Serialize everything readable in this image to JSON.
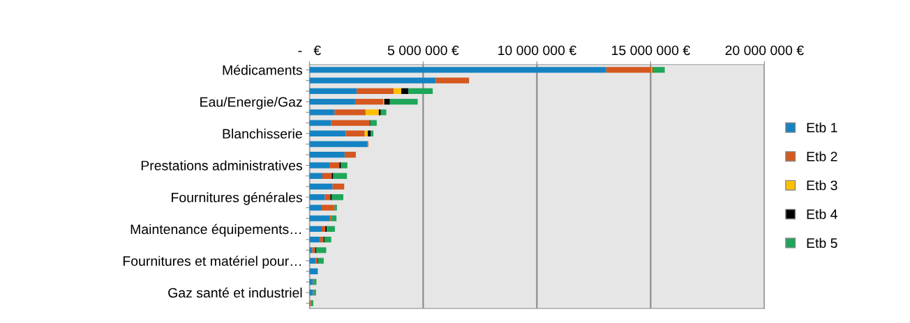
{
  "chart_data": {
    "type": "bar",
    "orientation": "horizontal",
    "stacked": true,
    "categories": [
      "Médicaments",
      null,
      null,
      "Eau/Energie/Gaz",
      null,
      null,
      "Blanchisserie",
      null,
      null,
      "Prestations administratives",
      null,
      null,
      "Fournitures générales",
      null,
      null,
      "Maintenance équipements…",
      null,
      null,
      "Fournitures et matériel pour…",
      null,
      null,
      "Gaz santé et industriel",
      null
    ],
    "series": [
      {
        "name": "Etb 1",
        "color": "#1583c2",
        "values": [
          13050000,
          5560000,
          2080000,
          2010000,
          1110000,
          960000,
          1600000,
          2540000,
          1550000,
          880000,
          570000,
          1020000,
          680000,
          540000,
          880000,
          540000,
          470000,
          130000,
          270000,
          370000,
          160000,
          160000,
          null
        ]
      },
      {
        "name": "Etb 2",
        "color": "#d4581f",
        "values": [
          1990000,
          1460000,
          1630000,
          1230000,
          1360000,
          1690000,
          830000,
          50000,
          490000,
          440000,
          410000,
          510000,
          240000,
          570000,
          70000,
          160000,
          150000,
          130000,
          80000,
          null,
          50000,
          50000,
          70000
        ]
      },
      {
        "name": "Etb 3",
        "color": "#ffc000",
        "values": [
          50000,
          null,
          330000,
          50000,
          580000,
          null,
          140000,
          null,
          null,
          null,
          null,
          null,
          null,
          null,
          null,
          null,
          null,
          null,
          null,
          null,
          null,
          null,
          null
        ]
      },
      {
        "name": "Etb 4",
        "color": "#000000",
        "values": [
          30000,
          null,
          310000,
          250000,
          90000,
          30000,
          130000,
          null,
          null,
          70000,
          70000,
          null,
          70000,
          null,
          null,
          60000,
          40000,
          40000,
          30000,
          null,
          null,
          null,
          null
        ]
      },
      {
        "name": "Etb 5",
        "color": "#1ea65a",
        "values": [
          500000,
          null,
          1070000,
          1220000,
          240000,
          280000,
          110000,
          null,
          null,
          280000,
          600000,
          null,
          500000,
          100000,
          240000,
          360000,
          300000,
          440000,
          250000,
          null,
          100000,
          80000,
          100000
        ]
      }
    ],
    "xlim": [
      0,
      20000000
    ],
    "xticks": [
      {
        "value": 0,
        "label": "-   €"
      },
      {
        "value": 5000000,
        "label": "5 000 000 €"
      },
      {
        "value": 10000000,
        "label": "10 000 000 €"
      },
      {
        "value": 15000000,
        "label": "15 000 000 €"
      },
      {
        "value": 20000000,
        "label": "20 000 000 €"
      }
    ],
    "grid": "x",
    "legend": "right"
  }
}
